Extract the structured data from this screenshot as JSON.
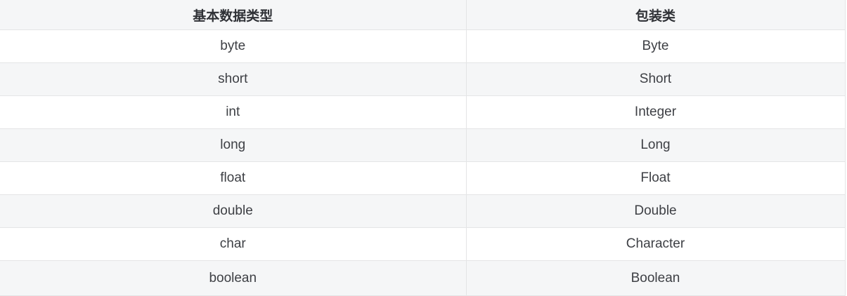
{
  "page": {
    "background": "#ffffff"
  },
  "table": {
    "columns": [
      {
        "label": "基本数据类型"
      },
      {
        "label": "包装类"
      }
    ],
    "rows": [
      {
        "primitive": "byte",
        "wrapper": "Byte"
      },
      {
        "primitive": "short",
        "wrapper": "Short"
      },
      {
        "primitive": "int",
        "wrapper": "Integer"
      },
      {
        "primitive": "long",
        "wrapper": "Long"
      },
      {
        "primitive": "float",
        "wrapper": "Float"
      },
      {
        "primitive": "double",
        "wrapper": "Double"
      },
      {
        "primitive": "char",
        "wrapper": "Character"
      },
      {
        "primitive": "boolean",
        "wrapper": "Boolean"
      }
    ],
    "colors": {
      "header_bg": "#f5f6f7",
      "stripe_bg": "#f5f6f7",
      "row_bg": "#ffffff",
      "border": "#e4e5e6",
      "header_text": "#2f3136",
      "body_text": "#3e4045"
    }
  }
}
